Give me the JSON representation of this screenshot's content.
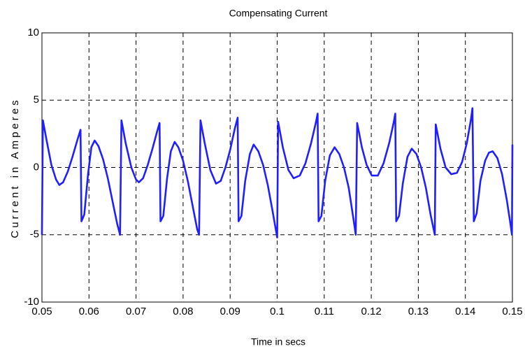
{
  "chart_data": {
    "type": "line",
    "title": "Compensating Current",
    "x_label": "Time in secs",
    "y_label": "Current in Amperes",
    "color": "#1f1fff",
    "grid": true,
    "xlim": [
      0.05,
      0.15
    ],
    "xticks": [
      0.05,
      0.06,
      0.07,
      0.08,
      0.09,
      0.1,
      0.11,
      0.12,
      0.13,
      0.14,
      0.15
    ],
    "ylim": [
      -10,
      10
    ],
    "yticks": [
      -10,
      -5,
      0,
      5,
      10
    ],
    "x": [
      0.05,
      0.0502,
      0.051,
      0.052,
      0.053,
      0.0537,
      0.0545,
      0.0555,
      0.0565,
      0.0575,
      0.0582,
      0.0584,
      0.059,
      0.0598,
      0.0605,
      0.0612,
      0.062,
      0.063,
      0.064,
      0.065,
      0.066,
      0.0666,
      0.0669,
      0.0678,
      0.069,
      0.07,
      0.0706,
      0.0715,
      0.0725,
      0.0735,
      0.0745,
      0.075,
      0.0752,
      0.0758,
      0.0766,
      0.0774,
      0.0782,
      0.079,
      0.08,
      0.081,
      0.082,
      0.083,
      0.0834,
      0.0837,
      0.0846,
      0.0858,
      0.087,
      0.088,
      0.089,
      0.09,
      0.091,
      0.0916,
      0.0918,
      0.0924,
      0.0932,
      0.0942,
      0.095,
      0.096,
      0.097,
      0.098,
      0.099,
      0.1,
      0.1002,
      0.1012,
      0.1024,
      0.1035,
      0.1048,
      0.106,
      0.1072,
      0.1082,
      0.1086,
      0.1088,
      0.1094,
      0.1102,
      0.1112,
      0.1122,
      0.1132,
      0.1142,
      0.1152,
      0.1162,
      0.1167,
      0.117,
      0.118,
      0.119,
      0.1201,
      0.1214,
      0.1226,
      0.1238,
      0.1248,
      0.1251,
      0.1253,
      0.1259,
      0.1267,
      0.1277,
      0.1286,
      0.1296,
      0.1306,
      0.1316,
      0.1326,
      0.1335,
      0.1337,
      0.1347,
      0.1358,
      0.137,
      0.1382,
      0.1393,
      0.1403,
      0.1412,
      0.1415,
      0.1418,
      0.1424,
      0.1432,
      0.1442,
      0.145,
      0.1458,
      0.1468,
      0.1478,
      0.1488,
      0.1495,
      0.1499,
      0.15
    ],
    "values": [
      -5,
      3.5,
      2.0,
      0.2,
      -0.9,
      -1.3,
      -1.1,
      -0.3,
      0.8,
      2.0,
      2.8,
      -4.0,
      -3.5,
      -0.5,
      1.5,
      2.0,
      1.6,
      0.6,
      -0.8,
      -2.5,
      -4.2,
      -5.0,
      3.5,
      1.8,
      0.0,
      -0.9,
      -1.1,
      -0.8,
      0.2,
      1.4,
      2.7,
      3.3,
      -4.0,
      -3.6,
      -0.8,
      1.2,
      1.9,
      1.5,
      0.5,
      -1.0,
      -2.8,
      -4.6,
      -5.0,
      3.5,
      1.8,
      -0.2,
      -1.2,
      -1.0,
      0.0,
      1.3,
      2.9,
      3.7,
      -4.0,
      -3.6,
      -1.0,
      1.0,
      1.7,
      1.2,
      0.2,
      -1.3,
      -3.2,
      -5.2,
      3.4,
      1.5,
      -0.2,
      -0.8,
      -0.6,
      0.3,
      1.8,
      3.3,
      4.0,
      -4.0,
      -3.6,
      -1.0,
      0.9,
      1.5,
      1.0,
      0.0,
      -1.5,
      -3.8,
      -5.0,
      3.3,
      1.5,
      0.2,
      -0.6,
      -0.6,
      0.3,
      1.8,
      3.4,
      4.0,
      -4.0,
      -3.6,
      -1.2,
      0.8,
      1.4,
      1.0,
      0.0,
      -1.5,
      -3.5,
      -5.0,
      3.2,
      1.4,
      0.0,
      -0.5,
      -0.4,
      0.4,
      1.8,
      3.6,
      4.4,
      -4.0,
      -3.4,
      -1.0,
      0.5,
      1.1,
      1.2,
      0.7,
      -0.5,
      -2.4,
      -4.0,
      -5.0,
      1.7
    ]
  }
}
